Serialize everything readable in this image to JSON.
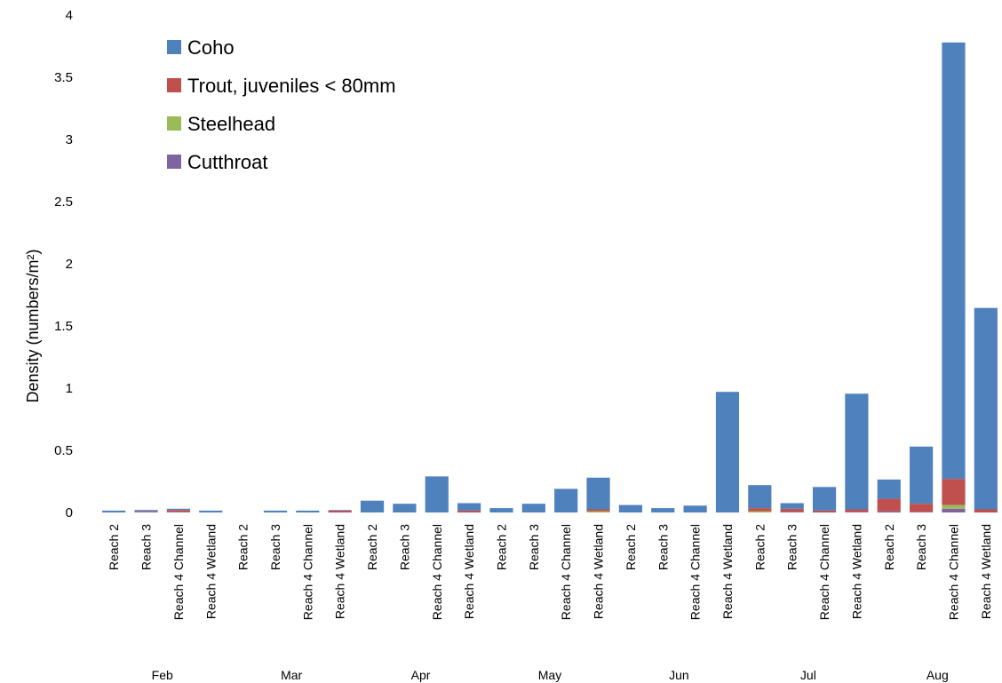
{
  "chart_data": {
    "type": "bar",
    "stacked": true,
    "ylabel": "Density (numbers/m²)",
    "ylim": [
      0,
      4
    ],
    "yticks": [
      "0",
      "0.5",
      "1",
      "1.5",
      "2",
      "2.5",
      "3",
      "3.5",
      "4"
    ],
    "grid": false,
    "legend_position": "top-left",
    "groups": [
      {
        "month": "Feb",
        "categories": [
          "Reach 2",
          "Reach 3",
          "Reach 4 Channel",
          "Reach 4 Wetland"
        ]
      },
      {
        "month": "Mar",
        "categories": [
          "Reach 2",
          "Reach 3",
          "Reach 4 Channel",
          "Reach 4 Wetland"
        ]
      },
      {
        "month": "Apr",
        "categories": [
          "Reach 2",
          "Reach 3",
          "Reach 4 Channel",
          "Reach 4 Wetland"
        ]
      },
      {
        "month": "May",
        "categories": [
          "Reach 2",
          "Reach 3",
          "Reach 4 Channel",
          "Reach 4 Wetland"
        ]
      },
      {
        "month": "Jun",
        "categories": [
          "Reach 2",
          "Reach 3",
          "Reach 4 Channel",
          "Reach 4 Wetland"
        ]
      },
      {
        "month": "Jul",
        "categories": [
          "Reach 2",
          "Reach 3",
          "Reach 4 Channel",
          "Reach 4 Wetland"
        ]
      },
      {
        "month": "Aug",
        "categories": [
          "Reach 2",
          "Reach 3",
          "Reach 4 Channel",
          "Reach 4 Wetland"
        ]
      }
    ],
    "series": [
      {
        "name": "Coho",
        "color": "#4f81bd",
        "values": [
          0.015,
          0.01,
          0.01,
          0.015,
          0,
          0.015,
          0.015,
          0.005,
          0.095,
          0.07,
          0.29,
          0.06,
          0.035,
          0.07,
          0.19,
          0.255,
          0.06,
          0.035,
          0.055,
          0.97,
          0.185,
          0.045,
          0.19,
          0.93,
          0.155,
          0.46,
          3.51,
          1.62
        ]
      },
      {
        "name": "Trout, juveniles < 80mm",
        "color": "#c0504d",
        "values": [
          0,
          0.005,
          0.015,
          0,
          0,
          0,
          0,
          0.015,
          0,
          0,
          0,
          0.015,
          0,
          0,
          0,
          0.015,
          0,
          0,
          0,
          0,
          0.025,
          0.025,
          0.015,
          0.02,
          0.1,
          0.065,
          0.21,
          0.025
        ]
      },
      {
        "name": "Steelhead",
        "color": "#9bbb59",
        "values": [
          0,
          0,
          0,
          0,
          0,
          0,
          0,
          0,
          0,
          0,
          0,
          0,
          0,
          0,
          0,
          0.01,
          0,
          0,
          0,
          0,
          0.01,
          0,
          0,
          0,
          0,
          0,
          0.03,
          0
        ]
      },
      {
        "name": "Cutthroat",
        "color": "#8064a2",
        "values": [
          0,
          0.005,
          0.005,
          0,
          0,
          0,
          0,
          0,
          0,
          0,
          0,
          0,
          0,
          0,
          0,
          0,
          0,
          0,
          0,
          0,
          0,
          0.005,
          0,
          0.005,
          0.01,
          0.005,
          0.03,
          0
        ]
      }
    ]
  }
}
